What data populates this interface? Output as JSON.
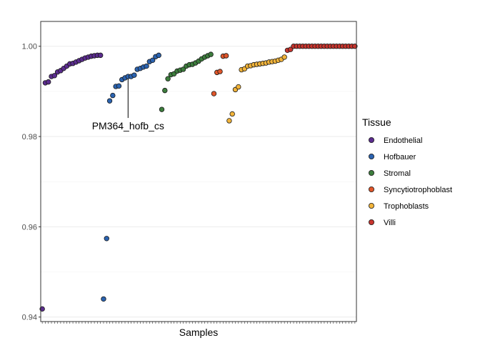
{
  "chart_data": {
    "type": "scatter",
    "xlabel": "Samples",
    "ylabel": "",
    "ylim": [
      0.939,
      1.0055
    ],
    "yticks": [
      0.94,
      0.96,
      0.98,
      1.0
    ],
    "ytick_labels": [
      "0.94",
      "0.96",
      "0.98",
      "1.00"
    ],
    "grid": true,
    "legend": {
      "title": "Tissue",
      "placement": "right"
    },
    "series": [
      {
        "name": "Endothelial",
        "color": "#5B2C8F",
        "values": [
          0.9418,
          0.9919,
          0.9921,
          0.9933,
          0.9935,
          0.9943,
          0.9946,
          0.9951,
          0.9956,
          0.9961,
          0.9962,
          0.9965,
          0.9968,
          0.9971,
          0.9974,
          0.9976,
          0.9978,
          0.9979,
          0.998,
          0.998
        ]
      },
      {
        "name": "Hofbauer",
        "color": "#2B63B0",
        "values": [
          0.944,
          0.9574,
          0.9879,
          0.9891,
          0.9911,
          0.9912,
          0.9926,
          0.993,
          0.9933,
          0.9933,
          0.9936,
          0.9949,
          0.9951,
          0.9954,
          0.9956,
          0.9966,
          0.9969,
          0.9977,
          0.998
        ]
      },
      {
        "name": "Stromal",
        "color": "#3D7D3D",
        "values": [
          0.986,
          0.9902,
          0.9928,
          0.9937,
          0.9939,
          0.9945,
          0.9947,
          0.9949,
          0.9956,
          0.9959,
          0.996,
          0.9963,
          0.9967,
          0.9972,
          0.9976,
          0.9979,
          0.9982
        ]
      },
      {
        "name": "Syncytiotrophoblast",
        "color": "#E0562A",
        "values": [
          0.9895,
          0.9942,
          0.9944,
          0.9978,
          0.9979
        ]
      },
      {
        "name": "Trophoblasts",
        "color": "#F2B43A",
        "values": [
          0.9835,
          0.985,
          0.9904,
          0.991,
          0.9948,
          0.995,
          0.9956,
          0.9957,
          0.9959,
          0.996,
          0.9961,
          0.9962,
          0.9963,
          0.9965,
          0.9966,
          0.9967,
          0.9969,
          0.9971,
          0.9976
        ]
      },
      {
        "name": "Villi",
        "color": "#C8352E",
        "values": [
          0.9991,
          0.9993,
          1.0,
          1.0,
          1.0,
          1.0,
          1.0,
          1.0,
          1.0,
          1.0,
          1.0,
          1.0,
          1.0,
          1.0,
          1.0,
          1.0,
          1.0,
          1.0,
          1.0,
          1.0,
          1.0,
          1.0,
          1.0
        ]
      }
    ],
    "annotations": [
      {
        "text": "PM364_hofb_cs",
        "series": "Hofbauer",
        "point_index": 8
      }
    ]
  }
}
